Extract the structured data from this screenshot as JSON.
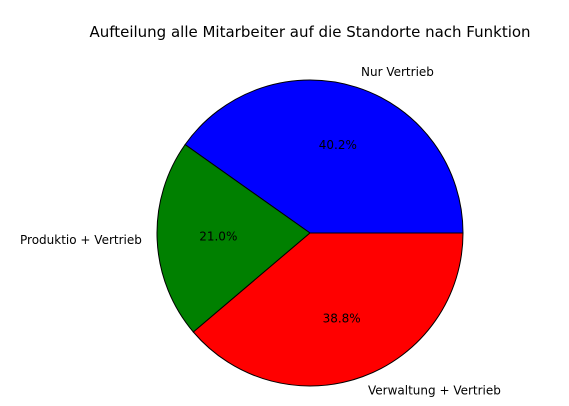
{
  "chart_data": {
    "type": "pie",
    "title": "Aufteilung alle Mitarbeiter auf die Standorte nach Funktion",
    "slices": [
      {
        "label": "Nur Vertrieb",
        "value": 40.2,
        "pct_label": "40.2%",
        "color": "#0000ff"
      },
      {
        "label": "Produktio + Vertrieb",
        "value": 21.0,
        "pct_label": "21.0%",
        "color": "#008000"
      },
      {
        "label": "Verwaltung + Vertrieb",
        "value": 38.8,
        "pct_label": "38.8%",
        "color": "#ff0000"
      }
    ],
    "start_angle_deg": 0,
    "direction": "counterclockwise",
    "edge_color": "#000000"
  }
}
